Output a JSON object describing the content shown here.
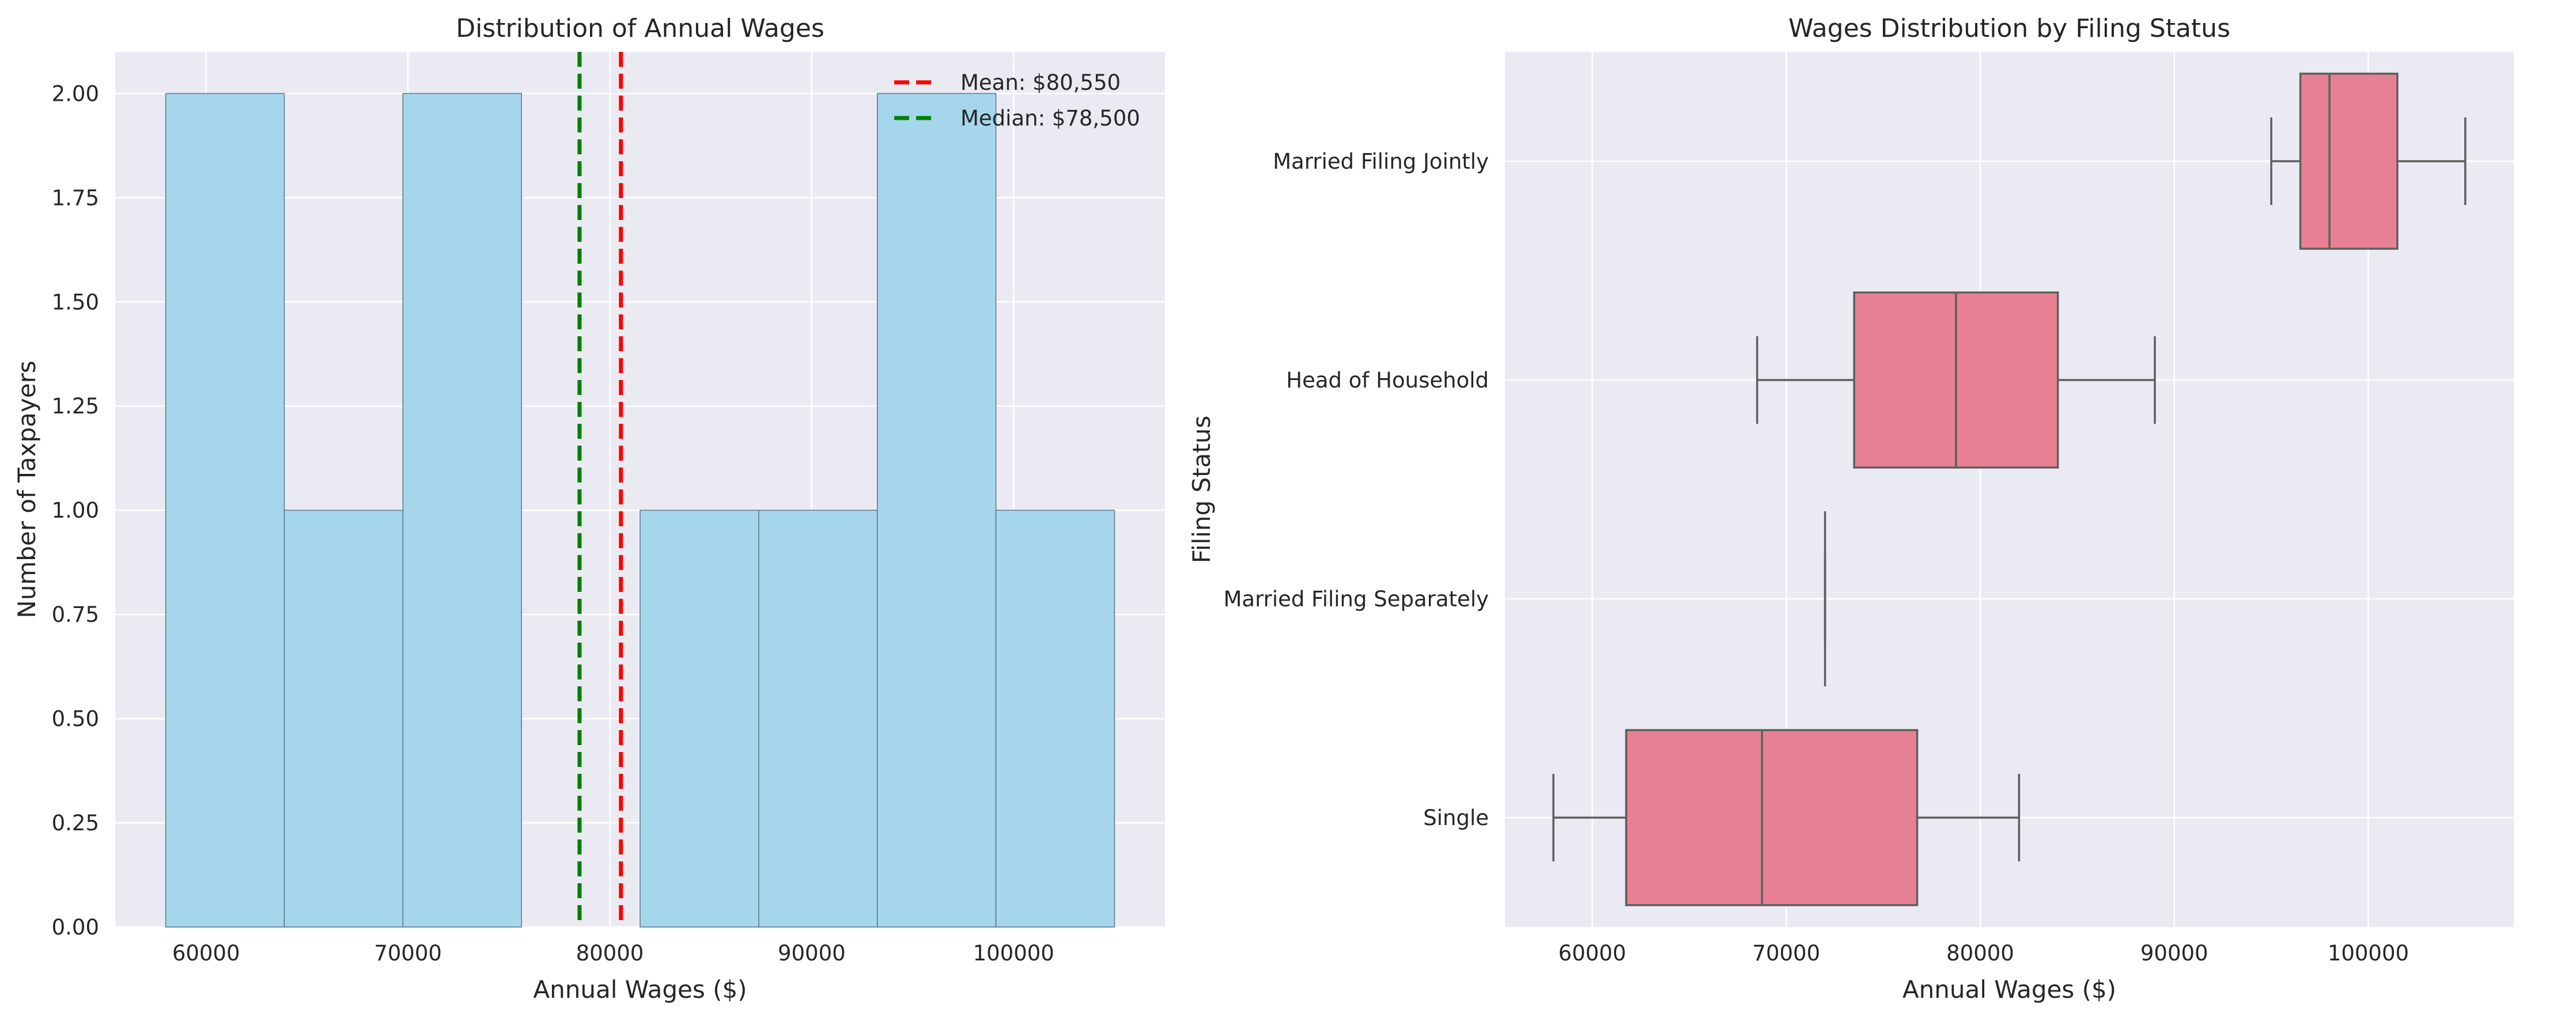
{
  "chart_data": [
    {
      "type": "histogram",
      "title": "Distribution of Annual Wages",
      "xlabel": "Annual Wages ($)",
      "ylabel": "Number of Taxpayers",
      "xlim": [
        55500,
        107500
      ],
      "ylim": [
        0,
        2.1
      ],
      "xticks": [
        60000,
        70000,
        80000,
        90000,
        100000
      ],
      "xtick_labels": [
        "60000",
        "70000",
        "80000",
        "90000",
        "100000"
      ],
      "yticks": [
        0,
        0.25,
        0.5,
        0.75,
        1.0,
        1.25,
        1.5,
        1.75,
        2.0
      ],
      "ytick_labels": [
        "0.00",
        "0.25",
        "0.50",
        "0.75",
        "1.00",
        "1.25",
        "1.50",
        "1.75",
        "2.00"
      ],
      "bin_edges": [
        58000,
        63875,
        69750,
        75625,
        81500,
        87375,
        93250,
        99125,
        105000
      ],
      "counts": [
        2,
        1,
        2,
        0,
        1,
        1,
        2,
        1
      ],
      "bar_color": "#a5d6ec",
      "bar_edge_color": "#5b7686",
      "grid": true,
      "reference_lines": [
        {
          "label": "Mean: $80,550",
          "value": 80550,
          "color": "#ff0000"
        },
        {
          "label": "Median: $78,500",
          "value": 78500,
          "color": "#008000"
        }
      ],
      "legend_position": "top-right"
    },
    {
      "type": "boxplot",
      "orientation": "horizontal",
      "title": "Wages Distribution by Filing Status",
      "xlabel": "Annual Wages ($)",
      "ylabel": "Filing Status",
      "xlim": [
        55500,
        107500
      ],
      "xticks": [
        60000,
        70000,
        80000,
        90000,
        100000
      ],
      "xtick_labels": [
        "60000",
        "70000",
        "80000",
        "90000",
        "100000"
      ],
      "categories": [
        "Married Filing Jointly",
        "Head of Household",
        "Married Filing Separately",
        "Single"
      ],
      "boxes": [
        {
          "category": "Married Filing Jointly",
          "whislo": 95000,
          "q1": 96500,
          "median": 98000,
          "q3": 101500,
          "whishi": 105000
        },
        {
          "category": "Head of Household",
          "whislo": 68500,
          "q1": 73500,
          "median": 78750,
          "q3": 84000,
          "whishi": 89000
        },
        {
          "category": "Married Filing Separately",
          "whislo": 72000,
          "q1": 72000,
          "median": 72000,
          "q3": 72000,
          "whishi": 72000
        },
        {
          "category": "Single",
          "whislo": 58000,
          "q1": 61750,
          "median": 68750,
          "q3": 76750,
          "whishi": 82000
        }
      ],
      "box_color": "#e88093",
      "line_color": "#5e5e5e",
      "grid": true
    }
  ]
}
